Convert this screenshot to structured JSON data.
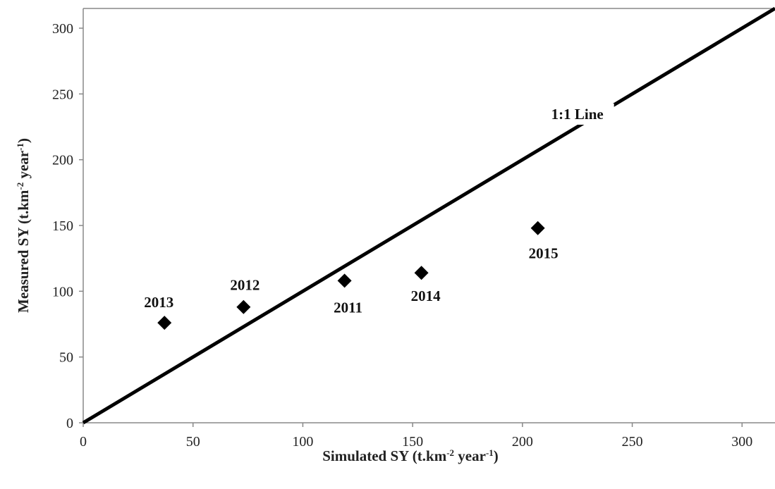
{
  "chart_data": {
    "type": "scatter",
    "xlabel": {
      "prefix": "Simulated  SY (t.km",
      "sup1": "-2",
      "mid": " year",
      "sup2": "-1",
      "suffix": ")"
    },
    "ylabel": {
      "prefix": "Measured  SY (t.km",
      "sup1": "-2",
      "mid": " year",
      "sup2": "-1",
      "suffix": ")"
    },
    "xlim": [
      0,
      315
    ],
    "ylim": [
      0,
      315
    ],
    "xticks": [
      0,
      50,
      100,
      150,
      200,
      250,
      300
    ],
    "yticks": [
      0,
      50,
      100,
      150,
      200,
      250,
      300
    ],
    "grid": false,
    "points": [
      {
        "label": "2013",
        "x": 37,
        "y": 76
      },
      {
        "label": "2012",
        "x": 73,
        "y": 88
      },
      {
        "label": "2011",
        "x": 119,
        "y": 108
      },
      {
        "label": "2014",
        "x": 154,
        "y": 114
      },
      {
        "label": "2015",
        "x": 207,
        "y": 148
      }
    ],
    "reference_line": {
      "label": "1:1 Line",
      "slope": 1,
      "intercept": 0
    },
    "marker": "diamond",
    "colors": {
      "points": "#000000",
      "line": "#000000",
      "axis": "#888888"
    }
  }
}
